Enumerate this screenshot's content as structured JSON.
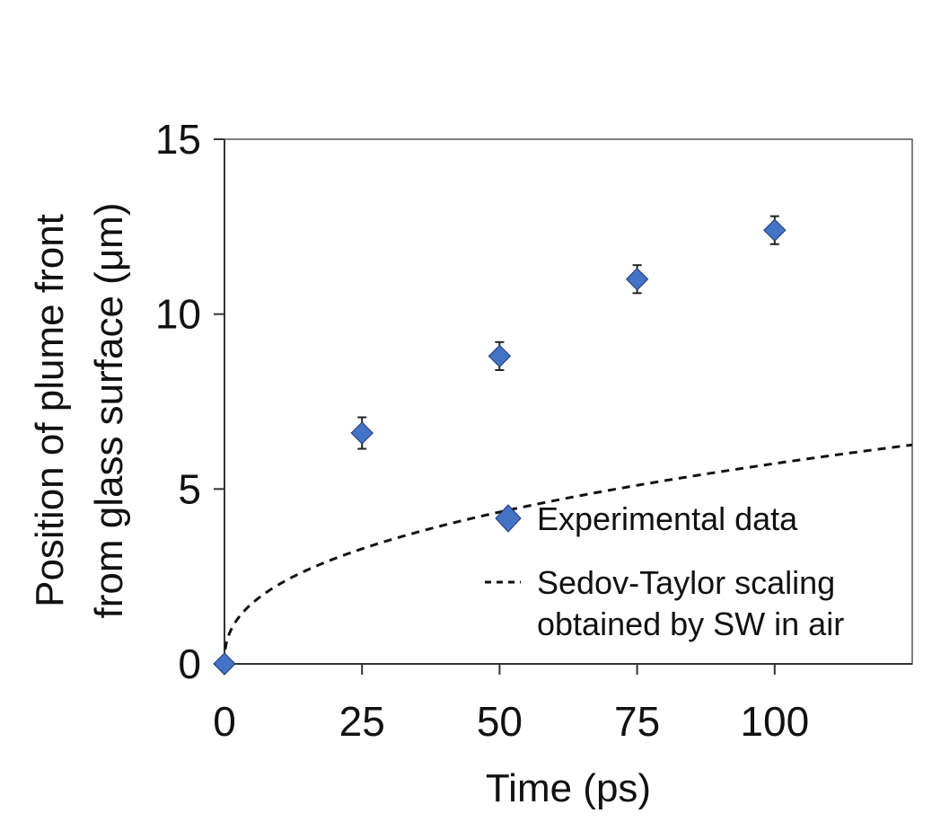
{
  "colors": {
    "marker": "#4472c4",
    "marker_stroke": "#1f3a6e",
    "curve": "#111111",
    "axis": "#333333"
  },
  "chart_data": {
    "type": "scatter",
    "title": "",
    "xlabel": "Time (ps)",
    "ylabel_lines": [
      "Position of plume front",
      "from glass surface (μm)"
    ],
    "xlim": [
      0,
      125
    ],
    "ylim": [
      0,
      15
    ],
    "x_ticks": [
      0,
      25,
      50,
      75,
      100
    ],
    "y_ticks": [
      0,
      5,
      10,
      15
    ],
    "grid": false,
    "legend_position": "bottom-right",
    "series": [
      {
        "name": "Experimental data",
        "kind": "markers",
        "marker": "diamond",
        "x": [
          0,
          25,
          50,
          75,
          100
        ],
        "y": [
          0,
          6.6,
          8.8,
          11.0,
          12.4
        ],
        "yerr": [
          0,
          0.45,
          0.4,
          0.4,
          0.4
        ]
      },
      {
        "name_lines": [
          "Sedov-Taylor scaling",
          "obtained by SW in air"
        ],
        "kind": "dashed-line",
        "model": "power",
        "coefficient": 0.9078,
        "exponent": 0.4,
        "x_range": [
          0,
          125
        ]
      }
    ]
  }
}
